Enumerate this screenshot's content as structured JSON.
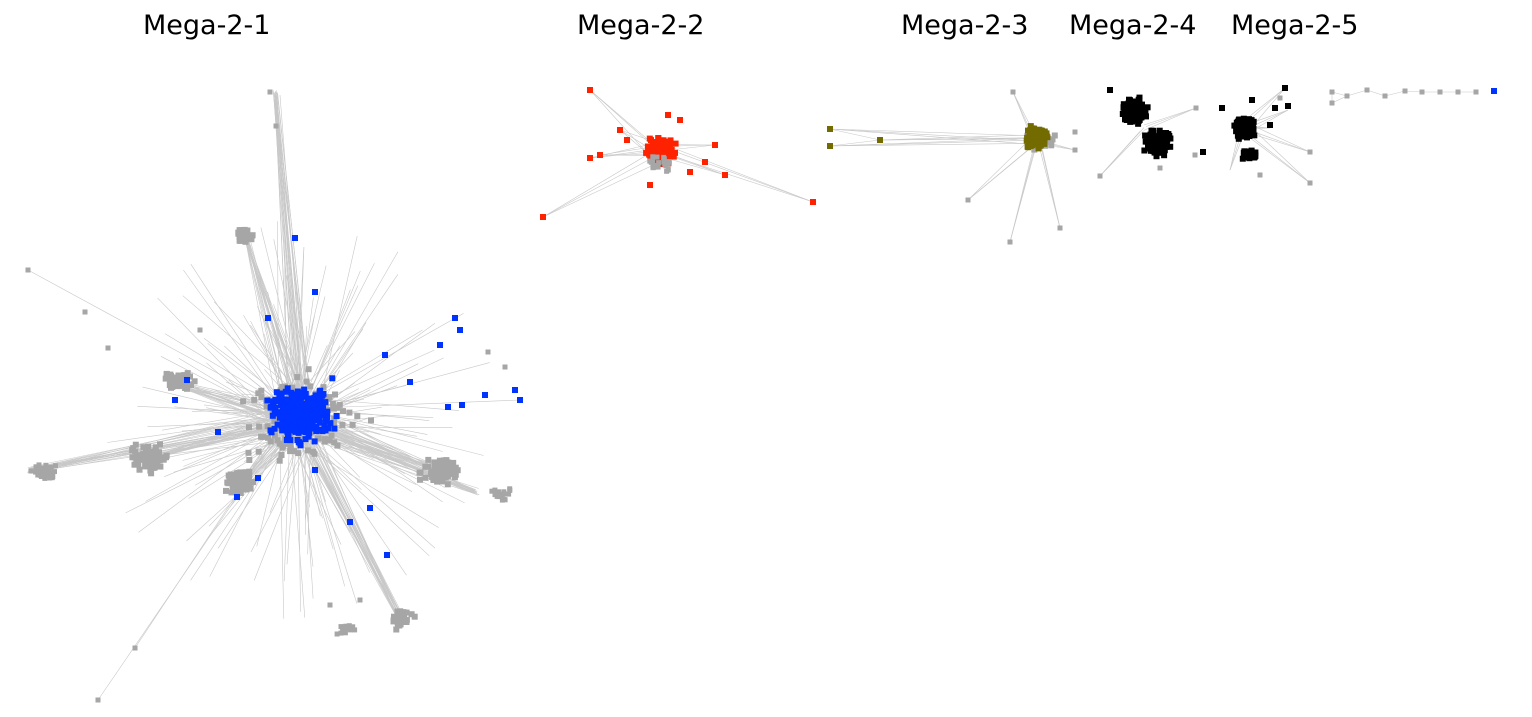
{
  "networks": [
    {
      "id": "mega-2-1",
      "title": "Mega-2-1",
      "colors": [
        "#a6a6a6",
        "#0033ff"
      ]
    },
    {
      "id": "mega-2-2",
      "title": "Mega-2-2",
      "colors": [
        "#ff2200",
        "#a6a6a6"
      ]
    },
    {
      "id": "mega-2-3",
      "title": "Mega-2-3",
      "colors": [
        "#736b00",
        "#a6a6a6"
      ]
    },
    {
      "id": "mega-2-4",
      "title": "Mega-2-4",
      "colors": [
        "#000000",
        "#a6a6a6"
      ]
    },
    {
      "id": "mega-2-5",
      "title": "Mega-2-5",
      "colors": [
        "#000000",
        "#a6a6a6",
        "#0033ff"
      ]
    }
  ],
  "palette": {
    "background": "#ffffff",
    "edge": "#c8c8c8",
    "gray_node": "#a6a6a6",
    "blue_node": "#0033ff",
    "red_node": "#ff2200",
    "olive_node": "#736b00",
    "black_node": "#000000"
  }
}
